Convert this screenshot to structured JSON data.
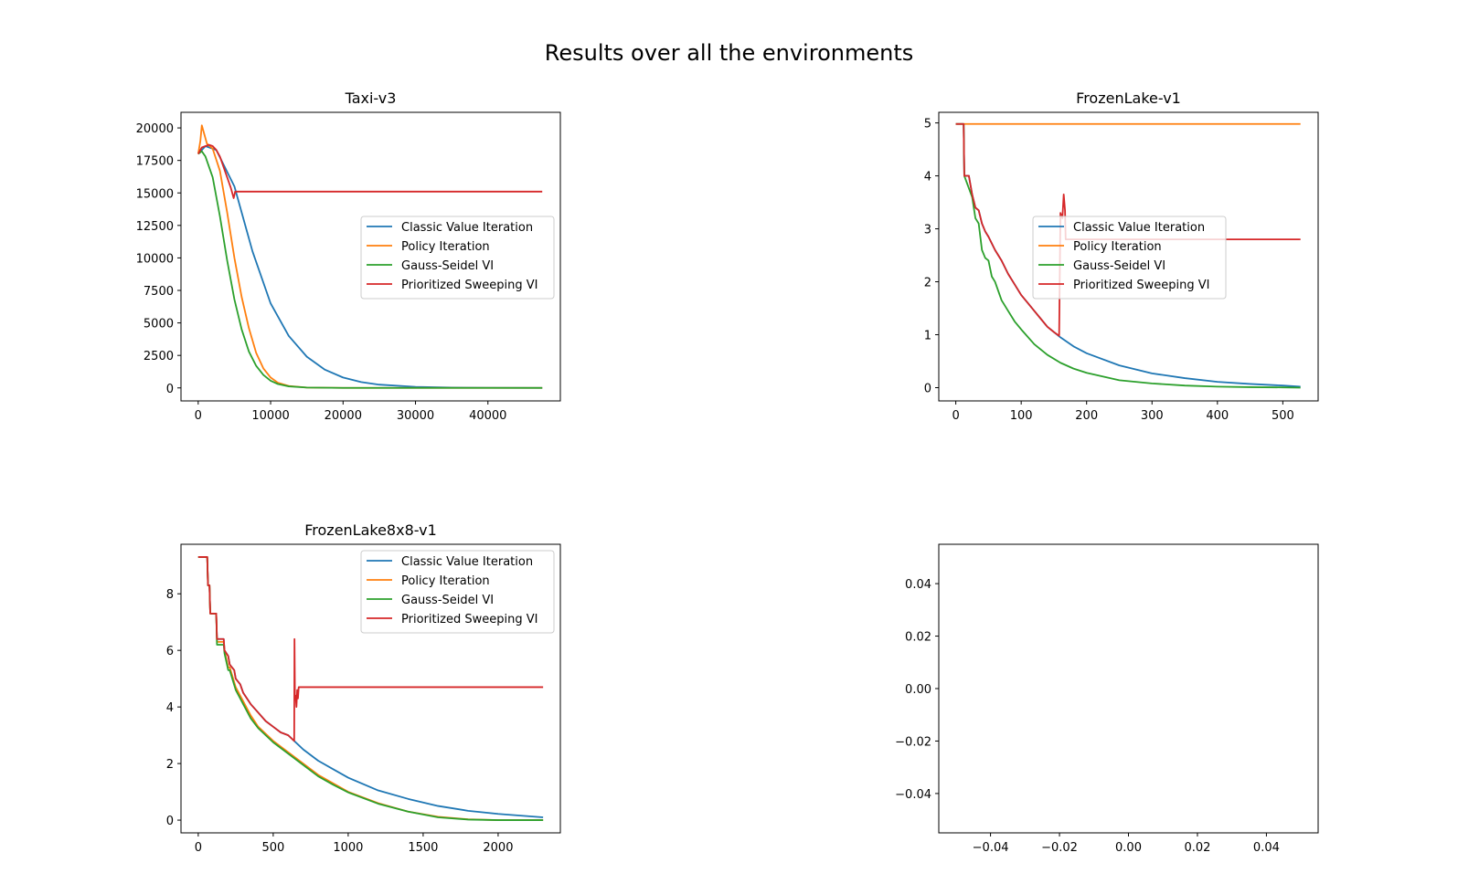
{
  "figure": {
    "title": "Results over all the environments"
  },
  "series_names": [
    "Classic Value Iteration",
    "Policy Iteration",
    "Gauss-Seidel VI",
    "Prioritized Sweeping VI"
  ],
  "colors": {
    "cvi": "#1f77b4",
    "pi": "#ff7f0e",
    "gs": "#2ca02c",
    "ps": "#d62728",
    "axis": "#000000",
    "background": "#ffffff"
  },
  "chart_data": [
    {
      "type": "line",
      "title": "Taxi-v3",
      "xlabel": "",
      "ylabel": "",
      "xlim": [
        -2375,
        50000
      ],
      "ylim": [
        -1000,
        21200
      ],
      "xticks": [
        0,
        10000,
        20000,
        30000,
        40000
      ],
      "yticks": [
        0,
        2500,
        5000,
        7500,
        10000,
        12500,
        15000,
        17500,
        20000
      ],
      "legend": "center-right",
      "grid": false,
      "series": [
        {
          "name": "Classic Value Iteration",
          "x": [
            0,
            1000,
            2500,
            5000,
            7500,
            10000,
            12500,
            15000,
            17500,
            20000,
            22500,
            25000,
            30000,
            35000,
            40000,
            47500
          ],
          "y": [
            18000,
            18600,
            18300,
            15500,
            10500,
            6500,
            4000,
            2400,
            1400,
            800,
            450,
            250,
            80,
            25,
            10,
            0
          ]
        },
        {
          "name": "Policy Iteration",
          "x": [
            0,
            300,
            500,
            800,
            1200,
            2000,
            3000,
            4000,
            5000,
            6000,
            7000,
            8000,
            9000,
            10000,
            11000,
            12500,
            15000,
            20000,
            30000,
            47500
          ],
          "y": [
            18000,
            19000,
            20200,
            19600,
            18800,
            18400,
            16700,
            13500,
            10000,
            7000,
            4600,
            2700,
            1500,
            800,
            400,
            150,
            30,
            0,
            0,
            0
          ]
        },
        {
          "name": "Gauss-Seidel VI",
          "x": [
            0,
            500,
            1000,
            2000,
            3000,
            4000,
            5000,
            6000,
            7000,
            8000,
            9000,
            10000,
            11000,
            12500,
            15000,
            20000,
            30000,
            47500
          ],
          "y": [
            18000,
            18200,
            17800,
            16200,
            13200,
            9800,
            6800,
            4500,
            2800,
            1700,
            1000,
            550,
            300,
            120,
            30,
            0,
            0,
            0
          ]
        },
        {
          "name": "Prioritized Sweeping VI",
          "x": [
            0,
            500,
            1000,
            1500,
            2000,
            2500,
            3000,
            3500,
            4000,
            4500,
            4900,
            5100,
            47500
          ],
          "y": [
            18000,
            18500,
            18600,
            18700,
            18600,
            18300,
            17800,
            17000,
            16200,
            15400,
            14600,
            15100,
            15100
          ]
        }
      ]
    },
    {
      "type": "line",
      "title": "FrozenLake-v1",
      "xlabel": "",
      "ylabel": "",
      "xlim": [
        -26,
        554
      ],
      "ylim": [
        -0.25,
        5.2
      ],
      "xticks": [
        0,
        100,
        200,
        300,
        400,
        500
      ],
      "yticks": [
        0,
        1,
        2,
        3,
        4,
        5
      ],
      "legend": "center-right",
      "grid": false,
      "series": [
        {
          "name": "Classic Value Iteration",
          "x": [
            0,
            12,
            13,
            20,
            25,
            30,
            35,
            40,
            45,
            50,
            60,
            70,
            80,
            90,
            100,
            110,
            120,
            130,
            140,
            150,
            160,
            180,
            200,
            250,
            300,
            350,
            400,
            450,
            500,
            527
          ],
          "y": [
            4.98,
            4.98,
            4.0,
            4.0,
            3.65,
            3.4,
            3.35,
            3.1,
            2.95,
            2.85,
            2.6,
            2.4,
            2.15,
            1.95,
            1.75,
            1.6,
            1.45,
            1.3,
            1.15,
            1.05,
            0.95,
            0.78,
            0.65,
            0.42,
            0.27,
            0.18,
            0.11,
            0.07,
            0.04,
            0.02
          ]
        },
        {
          "name": "Policy Iteration",
          "x": [
            0,
            527
          ],
          "y": [
            4.98,
            4.98
          ]
        },
        {
          "name": "Gauss-Seidel VI",
          "x": [
            0,
            12,
            13,
            25,
            30,
            35,
            40,
            45,
            50,
            55,
            60,
            70,
            80,
            90,
            100,
            120,
            140,
            160,
            180,
            200,
            250,
            300,
            350,
            400,
            450,
            500,
            527
          ],
          "y": [
            4.98,
            4.98,
            4.0,
            3.6,
            3.2,
            3.1,
            2.6,
            2.45,
            2.4,
            2.1,
            2.0,
            1.65,
            1.45,
            1.25,
            1.1,
            0.82,
            0.62,
            0.47,
            0.36,
            0.28,
            0.14,
            0.08,
            0.04,
            0.02,
            0.01,
            0.005,
            0.0
          ]
        },
        {
          "name": "Prioritized Sweeping VI",
          "x": [
            0,
            12,
            13,
            20,
            25,
            30,
            35,
            40,
            45,
            50,
            60,
            70,
            80,
            90,
            100,
            110,
            120,
            130,
            140,
            150,
            158,
            160,
            163,
            165,
            167,
            168,
            527
          ],
          "y": [
            4.98,
            4.98,
            4.0,
            4.0,
            3.65,
            3.4,
            3.35,
            3.1,
            2.95,
            2.85,
            2.6,
            2.4,
            2.15,
            1.95,
            1.75,
            1.6,
            1.45,
            1.3,
            1.15,
            1.05,
            0.98,
            3.3,
            3.2,
            3.65,
            3.35,
            2.8,
            2.8
          ]
        }
      ]
    },
    {
      "type": "line",
      "title": "FrozenLake8x8-v1",
      "xlabel": "",
      "ylabel": "",
      "xlim": [
        -115,
        2415
      ],
      "ylim": [
        -0.45,
        9.75
      ],
      "xticks": [
        0,
        500,
        1000,
        1500,
        2000
      ],
      "yticks": [
        0,
        2,
        4,
        6,
        8
      ],
      "legend": "top-right",
      "grid": false,
      "series": [
        {
          "name": "Classic Value Iteration",
          "x": [
            0,
            60,
            65,
            75,
            80,
            120,
            125,
            170,
            175,
            200,
            210,
            240,
            250,
            280,
            300,
            350,
            400,
            450,
            500,
            550,
            600,
            640,
            700,
            800,
            900,
            1000,
            1200,
            1400,
            1600,
            1800,
            2000,
            2300
          ],
          "y": [
            9.3,
            9.3,
            8.3,
            8.3,
            7.3,
            7.3,
            6.4,
            6.4,
            6.0,
            5.8,
            5.5,
            5.3,
            5.0,
            4.8,
            4.5,
            4.1,
            3.8,
            3.5,
            3.3,
            3.1,
            3.0,
            2.8,
            2.5,
            2.1,
            1.8,
            1.5,
            1.05,
            0.75,
            0.5,
            0.33,
            0.22,
            0.1
          ]
        },
        {
          "name": "Policy Iteration",
          "x": [
            0,
            60,
            65,
            75,
            80,
            120,
            125,
            170,
            175,
            200,
            210,
            250,
            300,
            350,
            400,
            500,
            600,
            700,
            800,
            900,
            1000,
            1200,
            1400,
            1600,
            1800,
            2000,
            2300
          ],
          "y": [
            9.3,
            9.3,
            8.3,
            8.3,
            7.3,
            7.3,
            6.3,
            6.3,
            6.0,
            5.4,
            5.4,
            4.7,
            4.2,
            3.7,
            3.3,
            2.8,
            2.4,
            2.0,
            1.6,
            1.3,
            1.0,
            0.6,
            0.3,
            0.12,
            0.03,
            0.0,
            0.0
          ]
        },
        {
          "name": "Gauss-Seidel VI",
          "x": [
            0,
            60,
            65,
            75,
            80,
            120,
            125,
            170,
            175,
            200,
            210,
            250,
            300,
            350,
            400,
            500,
            600,
            700,
            800,
            900,
            1000,
            1200,
            1400,
            1600,
            1800,
            2000,
            2300
          ],
          "y": [
            9.3,
            9.3,
            8.3,
            8.3,
            7.3,
            7.3,
            6.2,
            6.2,
            5.9,
            5.3,
            5.3,
            4.6,
            4.1,
            3.6,
            3.25,
            2.75,
            2.35,
            1.95,
            1.55,
            1.25,
            0.98,
            0.58,
            0.3,
            0.1,
            0.02,
            0.0,
            0.0
          ]
        },
        {
          "name": "Prioritized Sweeping VI",
          "x": [
            0,
            60,
            65,
            75,
            80,
            120,
            125,
            170,
            175,
            200,
            210,
            240,
            250,
            280,
            300,
            350,
            400,
            450,
            500,
            550,
            600,
            640,
            642,
            645,
            650,
            655,
            660,
            665,
            670,
            675,
            2300
          ],
          "y": [
            9.3,
            9.3,
            8.3,
            8.3,
            7.3,
            7.3,
            6.4,
            6.4,
            6.0,
            5.8,
            5.5,
            5.3,
            5.0,
            4.8,
            4.5,
            4.1,
            3.8,
            3.5,
            3.3,
            3.1,
            3.0,
            2.8,
            6.4,
            4.3,
            4.4,
            4.0,
            4.6,
            4.3,
            4.7,
            4.7,
            4.7
          ]
        }
      ]
    },
    {
      "type": "line",
      "title": "",
      "xlabel": "",
      "ylabel": "",
      "xlim": [
        -0.055,
        0.055
      ],
      "ylim": [
        -0.055,
        0.055
      ],
      "xticks": [
        -0.04,
        -0.02,
        0.0,
        0.02,
        0.04
      ],
      "yticks": [
        -0.04,
        -0.02,
        0.0,
        0.02,
        0.04
      ],
      "tick_decimals": 2,
      "legend": "none",
      "grid": false,
      "series": []
    }
  ]
}
